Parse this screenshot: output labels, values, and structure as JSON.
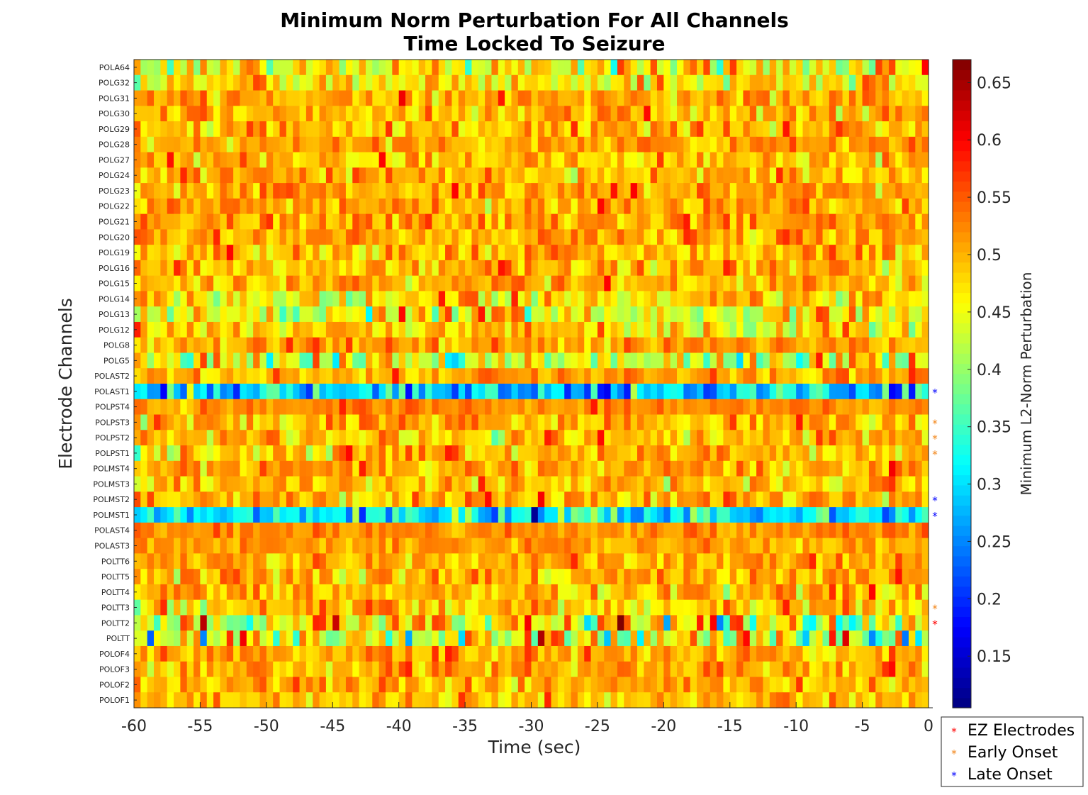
{
  "chart_data": {
    "type": "heatmap",
    "title": [
      "Minimum Norm Perturbation For All Channels",
      "Time Locked To Seizure"
    ],
    "xlabel": "Time (sec)",
    "ylabel": "Electrode Channels",
    "xlim": [
      -60,
      0
    ],
    "x_ticks": [
      "-60",
      "-55",
      "-50",
      "-45",
      "-40",
      "-35",
      "-30",
      "-25",
      "-20",
      "-15",
      "-10",
      "-5",
      "0"
    ],
    "time_bins": 120,
    "colormap": "jet",
    "colorbar": {
      "label": "Minimum L2-Norm Perturbation",
      "clim": [
        0.105,
        0.67
      ],
      "ticks": [
        "0.15",
        "0.2",
        "0.25",
        "0.3",
        "0.35",
        "0.4",
        "0.45",
        "0.5",
        "0.55",
        "0.6",
        "0.65"
      ]
    },
    "channels": [
      {
        "name": "POLA64",
        "mean": 0.46,
        "sd": 0.055,
        "group": "none"
      },
      {
        "name": "POLG32",
        "mean": 0.47,
        "sd": 0.045,
        "group": "none"
      },
      {
        "name": "POLG31",
        "mean": 0.51,
        "sd": 0.03,
        "group": "none"
      },
      {
        "name": "POLG30",
        "mean": 0.5,
        "sd": 0.035,
        "group": "none"
      },
      {
        "name": "POLG29",
        "mean": 0.5,
        "sd": 0.035,
        "group": "none"
      },
      {
        "name": "POLG28",
        "mean": 0.51,
        "sd": 0.03,
        "group": "none"
      },
      {
        "name": "POLG27",
        "mean": 0.5,
        "sd": 0.035,
        "group": "none"
      },
      {
        "name": "POLG24",
        "mean": 0.5,
        "sd": 0.035,
        "group": "none"
      },
      {
        "name": "POLG23",
        "mean": 0.51,
        "sd": 0.03,
        "group": "none"
      },
      {
        "name": "POLG22",
        "mean": 0.51,
        "sd": 0.03,
        "group": "none"
      },
      {
        "name": "POLG21",
        "mean": 0.51,
        "sd": 0.03,
        "group": "none"
      },
      {
        "name": "POLG20",
        "mean": 0.51,
        "sd": 0.03,
        "group": "none"
      },
      {
        "name": "POLG19",
        "mean": 0.5,
        "sd": 0.035,
        "group": "none"
      },
      {
        "name": "POLG16",
        "mean": 0.5,
        "sd": 0.035,
        "group": "none"
      },
      {
        "name": "POLG15",
        "mean": 0.5,
        "sd": 0.035,
        "group": "none"
      },
      {
        "name": "POLG14",
        "mean": 0.47,
        "sd": 0.045,
        "group": "none"
      },
      {
        "name": "POLG13",
        "mean": 0.45,
        "sd": 0.05,
        "group": "none"
      },
      {
        "name": "POLG12",
        "mean": 0.48,
        "sd": 0.04,
        "group": "none"
      },
      {
        "name": "POLG8",
        "mean": 0.51,
        "sd": 0.03,
        "group": "none"
      },
      {
        "name": "POLG5",
        "mean": 0.44,
        "sd": 0.06,
        "group": "none"
      },
      {
        "name": "POLAST2",
        "mean": 0.51,
        "sd": 0.03,
        "group": "none"
      },
      {
        "name": "POLAST1",
        "mean": 0.29,
        "sd": 0.06,
        "group": "late"
      },
      {
        "name": "POLPST4",
        "mean": 0.52,
        "sd": 0.02,
        "group": "none"
      },
      {
        "name": "POLPST3",
        "mean": 0.5,
        "sd": 0.035,
        "group": "early"
      },
      {
        "name": "POLPST2",
        "mean": 0.5,
        "sd": 0.035,
        "group": "early"
      },
      {
        "name": "POLPST1",
        "mean": 0.49,
        "sd": 0.035,
        "group": "early"
      },
      {
        "name": "POLMST4",
        "mean": 0.51,
        "sd": 0.03,
        "group": "none"
      },
      {
        "name": "POLMST3",
        "mean": 0.49,
        "sd": 0.035,
        "group": "none"
      },
      {
        "name": "POLMST2",
        "mean": 0.5,
        "sd": 0.04,
        "group": "late"
      },
      {
        "name": "POLMST1",
        "mean": 0.31,
        "sd": 0.06,
        "group": "late"
      },
      {
        "name": "POLAST4",
        "mean": 0.52,
        "sd": 0.02,
        "group": "none"
      },
      {
        "name": "POLAST3",
        "mean": 0.51,
        "sd": 0.025,
        "group": "none"
      },
      {
        "name": "POLTT6",
        "mean": 0.5,
        "sd": 0.03,
        "group": "none"
      },
      {
        "name": "POLTT5",
        "mean": 0.5,
        "sd": 0.035,
        "group": "none"
      },
      {
        "name": "POLTT4",
        "mean": 0.5,
        "sd": 0.035,
        "group": "none"
      },
      {
        "name": "POLTT3",
        "mean": 0.49,
        "sd": 0.04,
        "group": "early"
      },
      {
        "name": "POLTT2",
        "mean": 0.45,
        "sd": 0.08,
        "group": "ez"
      },
      {
        "name": "POLTT",
        "mean": 0.45,
        "sd": 0.09,
        "group": "none"
      },
      {
        "name": "POLOF4",
        "mean": 0.51,
        "sd": 0.03,
        "group": "none"
      },
      {
        "name": "POLOF3",
        "mean": 0.5,
        "sd": 0.03,
        "group": "none"
      },
      {
        "name": "POLOF2",
        "mean": 0.5,
        "sd": 0.03,
        "group": "none"
      },
      {
        "name": "POLOF1",
        "mean": 0.5,
        "sd": 0.03,
        "group": "none"
      }
    ],
    "groups": {
      "none": {
        "color": "#262626"
      },
      "ez": {
        "color": "#ff0000",
        "marker": "*"
      },
      "early": {
        "color": "#f28518",
        "marker": "*"
      },
      "late": {
        "color": "#0000ff",
        "marker": "*"
      }
    },
    "legend": {
      "placement": "bottom-right outside",
      "entries": [
        {
          "label": "EZ Electrodes",
          "group": "ez"
        },
        {
          "label": "Early Onset",
          "group": "early"
        },
        {
          "label": "Late Onset",
          "group": "late"
        }
      ]
    }
  }
}
